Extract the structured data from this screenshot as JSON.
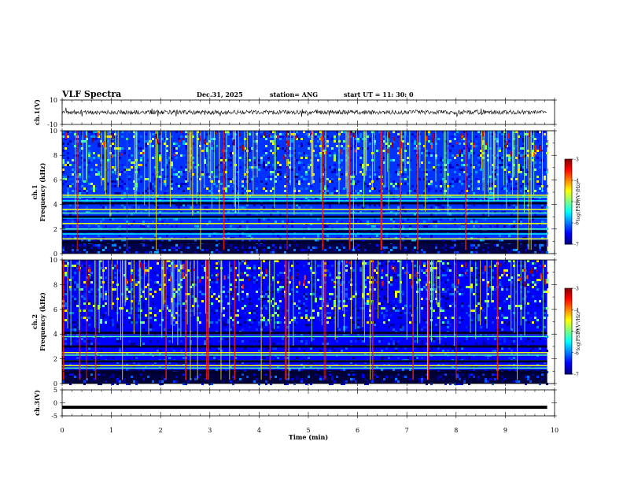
{
  "header": {
    "title": "VLF Spectra",
    "date": "Dec.31, 2025",
    "station": "station= ANG",
    "start": "start  UT =   11: 30: 0"
  },
  "chart_data": [
    {
      "type": "line",
      "name": "ch1-waveform",
      "ylabel": "ch.1(V)",
      "ylim": [
        -10,
        10
      ],
      "yticks": [
        10,
        -10
      ],
      "x_range": [
        0,
        9.85
      ],
      "level": 0,
      "noise_amplitude": 1
    },
    {
      "type": "heatmap",
      "name": "ch1-spectrogram",
      "ylabel_line1": "ch.1",
      "ylabel_line2": "Frequency (kHz)",
      "ylim": [
        0,
        10
      ],
      "yticks": [
        0,
        2,
        4,
        6,
        8,
        10
      ],
      "x_range": [
        0,
        9.85
      ],
      "colorbar": {
        "label": "log(PSD)(V²/Hz)",
        "range": [
          -7,
          -3
        ],
        "ticks": [
          -3,
          -4,
          -5,
          -6,
          -7
        ]
      },
      "bands_khz": [
        4.75,
        4.6,
        4.3,
        3.6,
        3.3,
        2.9,
        2.45,
        2.0,
        1.6,
        1.2
      ],
      "typical_level": -6.3
    },
    {
      "type": "heatmap",
      "name": "ch2-spectrogram",
      "ylabel_line1": "ch.2",
      "ylabel_line2": "Frequency (kHz)",
      "ylim": [
        0,
        10
      ],
      "yticks": [
        0,
        2,
        4,
        6,
        8,
        10
      ],
      "x_range": [
        0,
        9.85
      ],
      "colorbar": {
        "label": "log(PSD)(V²/Hz)",
        "range": [
          -7,
          -3
        ],
        "ticks": [
          -3,
          -4,
          -5,
          -6,
          -7
        ]
      },
      "bands_khz": [
        4.05,
        3.8,
        3.0,
        2.5,
        2.3,
        1.85,
        1.45,
        1.25
      ],
      "typical_level": -6.5
    },
    {
      "type": "line",
      "name": "ch3-waveform",
      "ylabel": "ch.3(V)",
      "ylim": [
        -5,
        5
      ],
      "yticks": [
        5,
        0,
        -5
      ],
      "x_range": [
        0,
        9.85
      ],
      "level": -1.7
    }
  ],
  "xaxis": {
    "label": "Time (min)",
    "range": [
      0,
      10
    ],
    "ticks": [
      0,
      1,
      2,
      3,
      4,
      5,
      6,
      7,
      8,
      9,
      10
    ]
  }
}
